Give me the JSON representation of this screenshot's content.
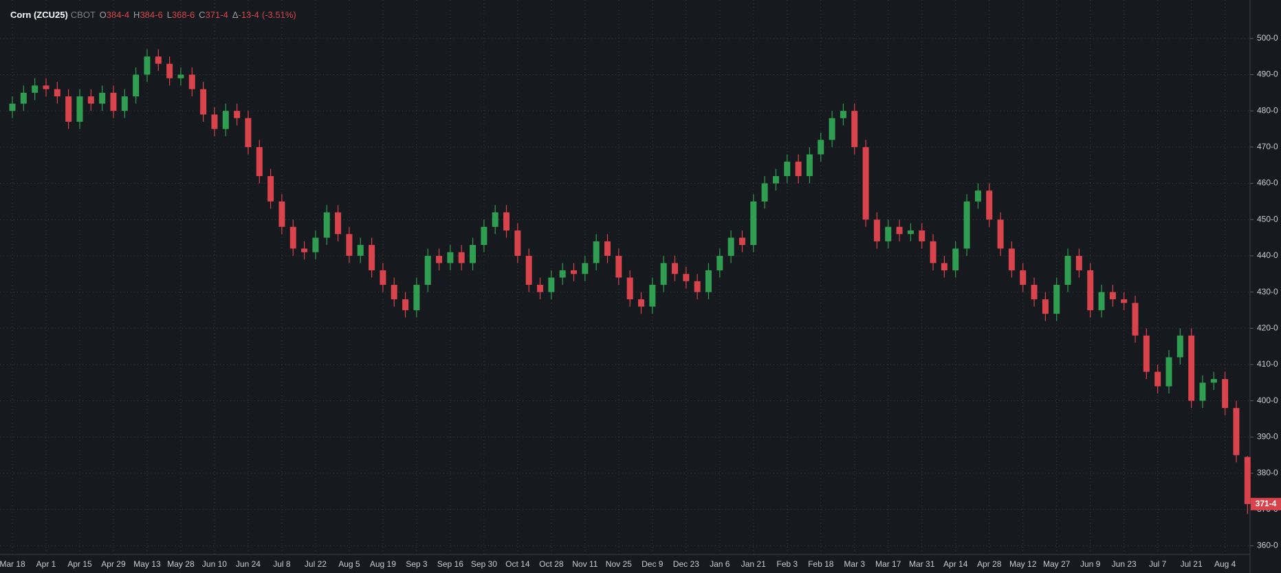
{
  "chart_data": {
    "type": "candlestick",
    "title": "Corn (ZCU25)",
    "exchange": "CBOT",
    "quote": [
      {
        "key": "O",
        "value": "384-4"
      },
      {
        "key": "H",
        "value": "384-6"
      },
      {
        "key": "L",
        "value": "368-6"
      },
      {
        "key": "C",
        "value": "371-4"
      },
      {
        "key": "Δ",
        "value": "-13-4"
      }
    ],
    "change_pct": "(-3.51%)",
    "last_label": "371-4",
    "up_color": "#2f9e50",
    "down_color": "#d8434c",
    "grid": true,
    "ylim": [
      357.6,
      510.6
    ],
    "yticks": [
      {
        "value": 360,
        "label": "360-0"
      },
      {
        "value": 370,
        "label": "370-0"
      },
      {
        "value": 380,
        "label": "380-0"
      },
      {
        "value": 390,
        "label": "390-0"
      },
      {
        "value": 400,
        "label": "400-0"
      },
      {
        "value": 410,
        "label": "410-0"
      },
      {
        "value": 420,
        "label": "420-0"
      },
      {
        "value": 430,
        "label": "430-0"
      },
      {
        "value": 440,
        "label": "440-0"
      },
      {
        "value": 450,
        "label": "450-0"
      },
      {
        "value": 460,
        "label": "460-0"
      },
      {
        "value": 470,
        "label": "470-0"
      },
      {
        "value": 480,
        "label": "480-0"
      },
      {
        "value": 490,
        "label": "490-0"
      },
      {
        "value": 500,
        "label": "500-0"
      }
    ],
    "categories": [
      "Mar 18",
      null,
      null,
      "Apr 1",
      null,
      null,
      "Apr 15",
      null,
      null,
      "Apr 29",
      null,
      null,
      "May 13",
      null,
      null,
      "May 28",
      null,
      null,
      "Jun 10",
      null,
      null,
      "Jun 24",
      null,
      null,
      "Jul 8",
      null,
      null,
      "Jul 22",
      null,
      null,
      "Aug 5",
      null,
      null,
      "Aug 19",
      null,
      null,
      "Sep 3",
      null,
      null,
      "Sep 16",
      null,
      null,
      "Sep 30",
      null,
      null,
      "Oct 14",
      null,
      null,
      "Oct 28",
      null,
      null,
      "Nov 11",
      null,
      null,
      "Nov 25",
      null,
      null,
      "Dec 9",
      null,
      null,
      "Dec 23",
      null,
      null,
      "Jan 6",
      null,
      null,
      "Jan 21",
      null,
      null,
      "Feb 3",
      null,
      null,
      "Feb 18",
      null,
      null,
      "Mar 3",
      null,
      null,
      "Mar 17",
      null,
      null,
      "Mar 31",
      null,
      null,
      "Apr 14",
      null,
      null,
      "Apr 28",
      null,
      null,
      "May 12",
      null,
      null,
      "May 27",
      null,
      null,
      "Jun 9",
      null,
      null,
      "Jun 23",
      null,
      null,
      "Jul 7",
      null,
      null,
      "Jul 21",
      null,
      null,
      "Aug 4",
      null,
      null
    ],
    "open": [
      480,
      482,
      485,
      487,
      486,
      484,
      477,
      484,
      482,
      485,
      480,
      484,
      490,
      495,
      493,
      489,
      490,
      486,
      479,
      475,
      480,
      478,
      470,
      462,
      455,
      448,
      442,
      441,
      445,
      452,
      446,
      440,
      443,
      436,
      432,
      428,
      425,
      432,
      440,
      438,
      441,
      438,
      443,
      448,
      452,
      447,
      440,
      432,
      430,
      434,
      436,
      435,
      438,
      444,
      440,
      434,
      428,
      426,
      432,
      438,
      435,
      433,
      430,
      436,
      440,
      445,
      443,
      455,
      460,
      462,
      466,
      462,
      468,
      472,
      478,
      480,
      470,
      450,
      444,
      448,
      446,
      447,
      444,
      438,
      436,
      442,
      455,
      458,
      450,
      442,
      436,
      432,
      428,
      424,
      432,
      440,
      436,
      425,
      430,
      428,
      427,
      418,
      408,
      404,
      412,
      418,
      400,
      405,
      406,
      398,
      384.5
    ],
    "high": [
      484,
      487,
      489,
      489,
      488,
      486,
      486,
      486,
      487,
      487,
      486,
      492,
      497,
      497,
      495,
      492,
      492,
      488,
      481,
      482,
      482,
      480,
      472,
      464,
      457,
      450,
      444,
      447,
      454,
      454,
      448,
      445,
      445,
      438,
      434,
      430,
      434,
      442,
      442,
      443,
      443,
      445,
      450,
      454,
      454,
      449,
      442,
      434,
      436,
      438,
      438,
      440,
      446,
      446,
      442,
      436,
      430,
      434,
      440,
      440,
      437,
      435,
      438,
      442,
      447,
      447,
      457,
      462,
      464,
      468,
      468,
      470,
      474,
      480,
      482,
      482,
      472,
      452,
      450,
      450,
      449,
      449,
      446,
      440,
      444,
      457,
      460,
      460,
      452,
      444,
      438,
      434,
      430,
      434,
      442,
      442,
      438,
      432,
      432,
      430,
      429,
      420,
      410,
      414,
      420,
      420,
      407,
      408,
      408,
      400,
      384.75
    ],
    "low": [
      478,
      480,
      483,
      484,
      482,
      475,
      475,
      480,
      480,
      478,
      478,
      482,
      488,
      491,
      487,
      487,
      484,
      477,
      473,
      473,
      476,
      468,
      460,
      453,
      446,
      440,
      439,
      439,
      443,
      444,
      438,
      438,
      434,
      430,
      426,
      423,
      423,
      430,
      436,
      436,
      436,
      436,
      441,
      446,
      445,
      438,
      430,
      428,
      428,
      432,
      433,
      433,
      436,
      438,
      432,
      426,
      424,
      424,
      430,
      433,
      431,
      428,
      428,
      434,
      438,
      441,
      441,
      453,
      458,
      460,
      460,
      460,
      466,
      470,
      476,
      468,
      448,
      442,
      442,
      444,
      444,
      442,
      436,
      434,
      434,
      440,
      453,
      448,
      440,
      434,
      430,
      426,
      422,
      422,
      430,
      434,
      423,
      423,
      426,
      425,
      416,
      406,
      402,
      402,
      410,
      398,
      398,
      403,
      396,
      383,
      368.75
    ],
    "close": [
      482,
      485,
      487,
      486,
      484,
      477,
      484,
      482,
      485,
      480,
      484,
      490,
      495,
      493,
      489,
      490,
      486,
      479,
      475,
      480,
      478,
      470,
      462,
      455,
      448,
      442,
      441,
      445,
      452,
      446,
      440,
      443,
      436,
      432,
      428,
      425,
      432,
      440,
      438,
      441,
      438,
      443,
      448,
      452,
      447,
      440,
      432,
      430,
      434,
      436,
      435,
      438,
      444,
      440,
      434,
      428,
      426,
      432,
      438,
      435,
      433,
      430,
      436,
      440,
      445,
      443,
      455,
      460,
      462,
      466,
      462,
      468,
      472,
      478,
      480,
      470,
      450,
      444,
      448,
      446,
      447,
      444,
      438,
      436,
      442,
      455,
      458,
      450,
      442,
      436,
      432,
      428,
      424,
      432,
      440,
      436,
      425,
      430,
      428,
      427,
      418,
      408,
      404,
      412,
      418,
      400,
      405,
      406,
      398,
      385,
      371.5
    ]
  }
}
